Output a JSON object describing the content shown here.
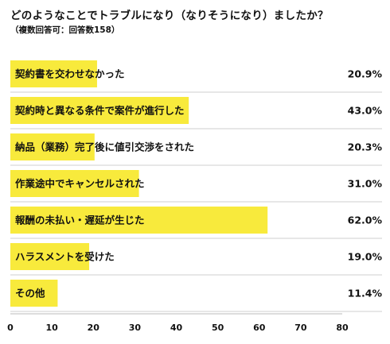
{
  "title": "どのようなことでトラブルになり（なりそうになり）ましたか？",
  "subtitle": "（複数回答可：回答数158）",
  "colors": {
    "bar": "#F8EA3C",
    "divider": "#cfcfcf",
    "axis": "#bbbbbb"
  },
  "chart_data": {
    "type": "bar",
    "orientation": "horizontal",
    "title": "どのようなことでトラブルになり（なりそうになり）ましたか？",
    "subtitle": "（複数回答可：回答数158）",
    "categories": [
      "契約書を交わせなかった",
      "契約時と異なる条件で案件が進行した",
      "納品（業務）完了後に値引交渉をされた",
      "作業途中でキャンセルされた",
      "報酬の未払い・遅延が生じた",
      "ハラスメントを受けた",
      "その他"
    ],
    "values": [
      20.9,
      43.0,
      20.3,
      31.0,
      62.0,
      19.0,
      11.4
    ],
    "value_labels": [
      "20.9%",
      "43.0%",
      "20.3%",
      "31.0%",
      "62.0%",
      "19.0%",
      "11.4%"
    ],
    "xlim": [
      0,
      80
    ],
    "xticks": [
      0,
      10,
      20,
      30,
      40,
      50,
      60,
      70,
      80
    ],
    "grid": false
  }
}
